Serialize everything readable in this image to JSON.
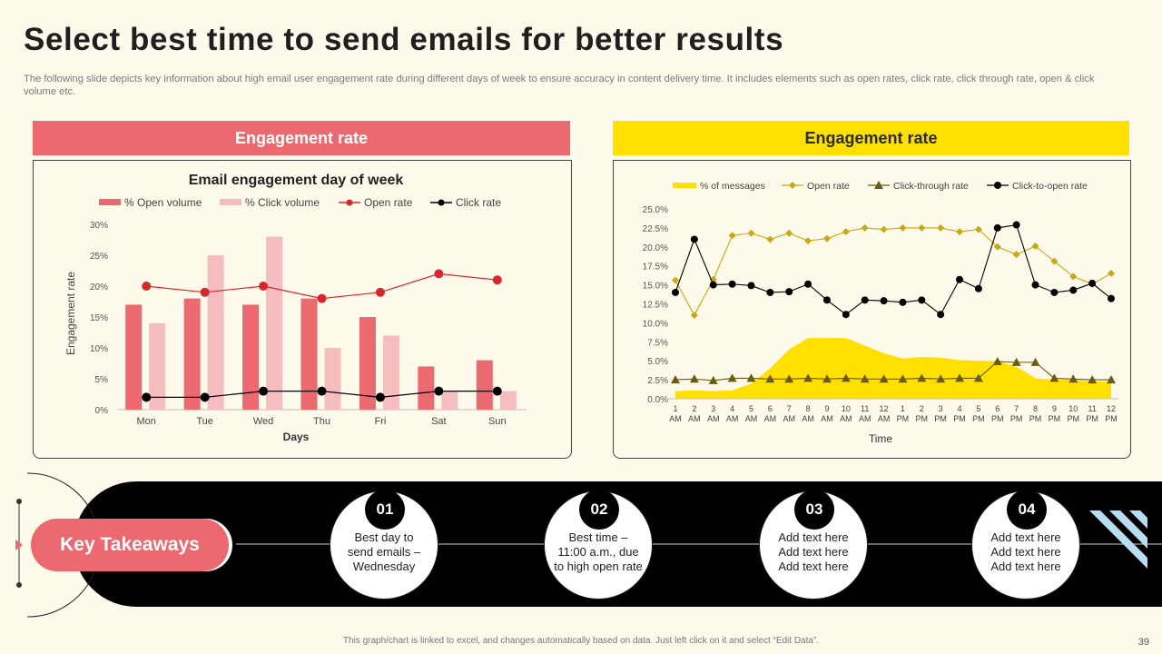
{
  "title": "Select best time to send emails for better results",
  "subtitle": "The following slide depicts key information about high email user engagement rate during different days of week to ensure accuracy in content delivery time. It includes elements such as open rates, click rate, click through rate, open & click volume etc.",
  "left_panel": {
    "header": "Engagement rate"
  },
  "right_panel": {
    "header": "Engagement rate"
  },
  "colors": {
    "coral": "#ec6a6f",
    "pink": "#f6bdc0",
    "red_line": "#d9262c",
    "yellow": "#ffe000",
    "gold": "#c8a814",
    "olive": "#6b5a10",
    "black": "#000000"
  },
  "chart_data": [
    {
      "type": "bar",
      "title": "Email engagement day of week",
      "xlabel": "Days",
      "ylabel": "Engagement rate",
      "categories": [
        "Mon",
        "Tue",
        "Wed",
        "Thu",
        "Fri",
        "Sat",
        "Sun"
      ],
      "ylim": [
        0,
        30
      ],
      "yticks": [
        "0%",
        "5%",
        "10%",
        "15%",
        "20%",
        "25%",
        "30%"
      ],
      "series": [
        {
          "name": "% Open volume",
          "kind": "bar",
          "color": "#ec6a6f",
          "values": [
            17,
            18,
            17,
            18,
            15,
            7,
            8
          ]
        },
        {
          "name": "% Click volume",
          "kind": "bar",
          "color": "#f6bdc0",
          "values": [
            14,
            25,
            28,
            10,
            12,
            3,
            3
          ]
        },
        {
          "name": "Open rate",
          "kind": "line",
          "color": "#d9262c",
          "values": [
            20,
            19,
            20,
            18,
            19,
            22,
            21
          ]
        },
        {
          "name": "Click rate",
          "kind": "line",
          "color": "#000000",
          "values": [
            2,
            2,
            3,
            3,
            2,
            3,
            3
          ]
        }
      ],
      "legend_position": "top"
    },
    {
      "type": "line",
      "xlabel": "Time",
      "ylabel": "",
      "categories": [
        [
          "1",
          "AM"
        ],
        [
          "2",
          "AM"
        ],
        [
          "3",
          "AM"
        ],
        [
          "4",
          "AM"
        ],
        [
          "5",
          "AM"
        ],
        [
          "6",
          "AM"
        ],
        [
          "7",
          "AM"
        ],
        [
          "8",
          "AM"
        ],
        [
          "9",
          "AM"
        ],
        [
          "10",
          "AM"
        ],
        [
          "11",
          "AM"
        ],
        [
          "12",
          "AM"
        ],
        [
          "1",
          "PM"
        ],
        [
          "2",
          "PM"
        ],
        [
          "3",
          "PM"
        ],
        [
          "4",
          "PM"
        ],
        [
          "5",
          "PM"
        ],
        [
          "6",
          "PM"
        ],
        [
          "7",
          "PM"
        ],
        [
          "8",
          "PM"
        ],
        [
          "9",
          "PM"
        ],
        [
          "10",
          "PM"
        ],
        [
          "11",
          "PM"
        ],
        [
          "12",
          "PM"
        ]
      ],
      "ylim": [
        0,
        25
      ],
      "yticks": [
        "0.0%",
        "2.5%",
        "5.0%",
        "7.5%",
        "10.0%",
        "12.5%",
        "15.0%",
        "17.5%",
        "20.0%",
        "22.5%",
        "25.0%"
      ],
      "series": [
        {
          "name": "% of messages",
          "kind": "area",
          "color": "#ffe000",
          "values": [
            1.0,
            1.1,
            1.0,
            1.1,
            2.0,
            4.0,
            6.5,
            8.0,
            8.0,
            8.0,
            7.0,
            6.0,
            5.3,
            5.5,
            5.4,
            5.1,
            5.0,
            5.0,
            4.2,
            2.7,
            2.5,
            2.5,
            2.3,
            2.2
          ]
        },
        {
          "name": "Open rate",
          "kind": "line",
          "marker": "diamond",
          "color": "#c8a814",
          "values": [
            15.6,
            11.0,
            15.7,
            21.5,
            21.8,
            21.0,
            21.8,
            20.8,
            21.1,
            22.0,
            22.5,
            22.3,
            22.5,
            22.5,
            22.5,
            22.0,
            22.3,
            20.0,
            19.0,
            20.1,
            18.1,
            16.1,
            15.1,
            16.5
          ]
        },
        {
          "name": "Click-through rate",
          "kind": "line",
          "marker": "triangle",
          "color": "#6b5a10",
          "values": [
            2.5,
            2.6,
            2.4,
            2.7,
            2.7,
            2.6,
            2.6,
            2.7,
            2.6,
            2.7,
            2.6,
            2.6,
            2.6,
            2.7,
            2.6,
            2.7,
            2.7,
            4.9,
            4.8,
            4.8,
            2.7,
            2.6,
            2.5,
            2.5
          ]
        },
        {
          "name": "Click-to-open rate",
          "kind": "line",
          "marker": "circle",
          "color": "#000000",
          "values": [
            14.0,
            21.0,
            15.0,
            15.1,
            14.9,
            14.0,
            14.1,
            15.1,
            13.0,
            11.1,
            13.0,
            12.9,
            12.7,
            13.0,
            11.1,
            15.7,
            14.5,
            22.5,
            22.9,
            15.0,
            14.0,
            14.3,
            15.2,
            13.2
          ]
        }
      ],
      "legend_position": "top"
    }
  ],
  "takeaways": {
    "label": "Key Takeaways",
    "items": [
      {
        "num": "01",
        "lines": [
          "Best day to",
          "send emails –",
          "Wednesday"
        ]
      },
      {
        "num": "02",
        "lines": [
          "Best time –",
          "11:00 a.m., due",
          "to high open rate"
        ]
      },
      {
        "num": "03",
        "lines": [
          "Add text here",
          "Add text here",
          "Add text here"
        ]
      },
      {
        "num": "04",
        "lines": [
          "Add text here",
          "Add text here",
          "Add text here"
        ]
      }
    ]
  },
  "footer": "This graph/chart is linked to excel, and changes automatically based on data. Just left click on it and select “Edit Data”.",
  "page_number": "39"
}
